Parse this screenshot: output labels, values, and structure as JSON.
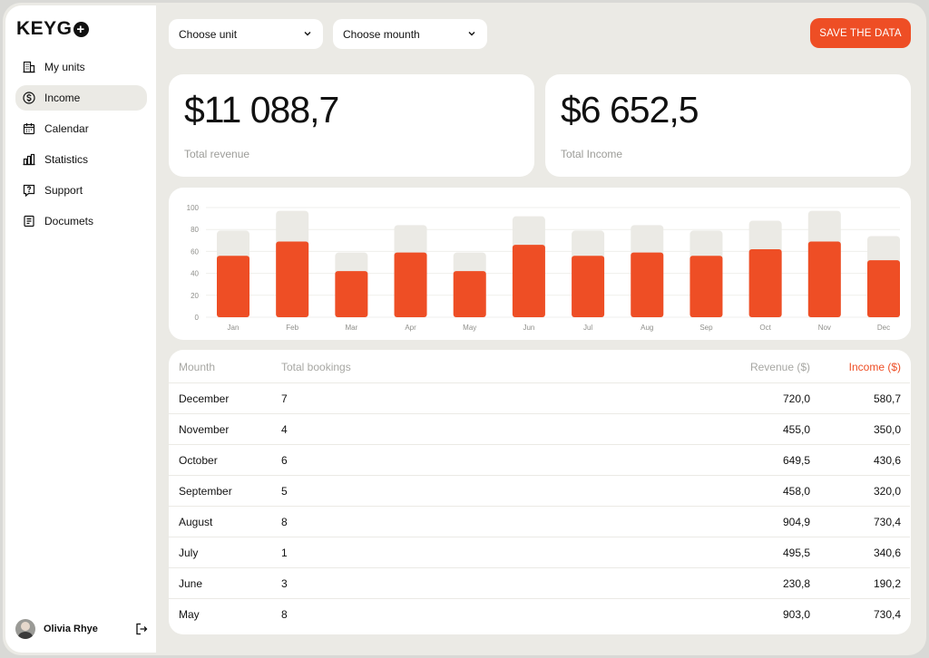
{
  "app": {
    "logo_text": "KEYG",
    "logo_plus": "+"
  },
  "sidebar": {
    "items": [
      {
        "label": "My units",
        "icon": "building-icon",
        "active": false
      },
      {
        "label": "Income",
        "icon": "dollar-circle-icon",
        "active": true
      },
      {
        "label": "Calendar",
        "icon": "calendar-icon",
        "active": false
      },
      {
        "label": "Statistics",
        "icon": "bar-chart-icon",
        "active": false
      },
      {
        "label": "Support",
        "icon": "question-message-icon",
        "active": false
      },
      {
        "label": "Documets",
        "icon": "document-icon",
        "active": false
      }
    ],
    "user": {
      "name": "Olivia Rhye"
    }
  },
  "toolbar": {
    "unit_select": "Choose unit",
    "month_select": "Choose mounth",
    "save_label": "SAVE THE DATA"
  },
  "stats": {
    "revenue_value": "$11 088,7",
    "revenue_label": "Total revenue",
    "income_value": "$6 652,5",
    "income_label": "Total Income"
  },
  "colors": {
    "accent": "#ee4e25",
    "bar_bg": "#ebeae5",
    "page_bg": "#ebeae5"
  },
  "chart_data": {
    "type": "bar",
    "categories": [
      "Jan",
      "Feb",
      "Mar",
      "Apr",
      "May",
      "Jun",
      "Jul",
      "Aug",
      "Sep",
      "Oct",
      "Nov",
      "Dec"
    ],
    "series": [
      {
        "values": [
          79,
          97,
          59,
          84,
          59,
          92,
          79,
          84,
          79,
          88,
          97,
          74
        ]
      },
      {
        "values": [
          56,
          69,
          42,
          59,
          42,
          66,
          56,
          59,
          56,
          62,
          69,
          52
        ]
      }
    ],
    "yticks": [
      0,
      20,
      40,
      60,
      80,
      100
    ],
    "ylim": [
      0,
      100
    ],
    "grid": true
  },
  "table": {
    "headers": {
      "month": "Mounth",
      "bookings": "Total bookings",
      "revenue": "Revenue ($)",
      "income": "Income ($)"
    },
    "rows": [
      {
        "month": "December",
        "bookings": "7",
        "revenue": "720,0",
        "income": "580,7"
      },
      {
        "month": "November",
        "bookings": "4",
        "revenue": "455,0",
        "income": "350,0"
      },
      {
        "month": "October",
        "bookings": "6",
        "revenue": "649,5",
        "income": "430,6"
      },
      {
        "month": "September",
        "bookings": "5",
        "revenue": "458,0",
        "income": "320,0"
      },
      {
        "month": "August",
        "bookings": "8",
        "revenue": "904,9",
        "income": "730,4"
      },
      {
        "month": "July",
        "bookings": "1",
        "revenue": "495,5",
        "income": "340,6"
      },
      {
        "month": "June",
        "bookings": "3",
        "revenue": "230,8",
        "income": "190,2"
      },
      {
        "month": "May",
        "bookings": "8",
        "revenue": "903,0",
        "income": "730,4"
      }
    ]
  }
}
